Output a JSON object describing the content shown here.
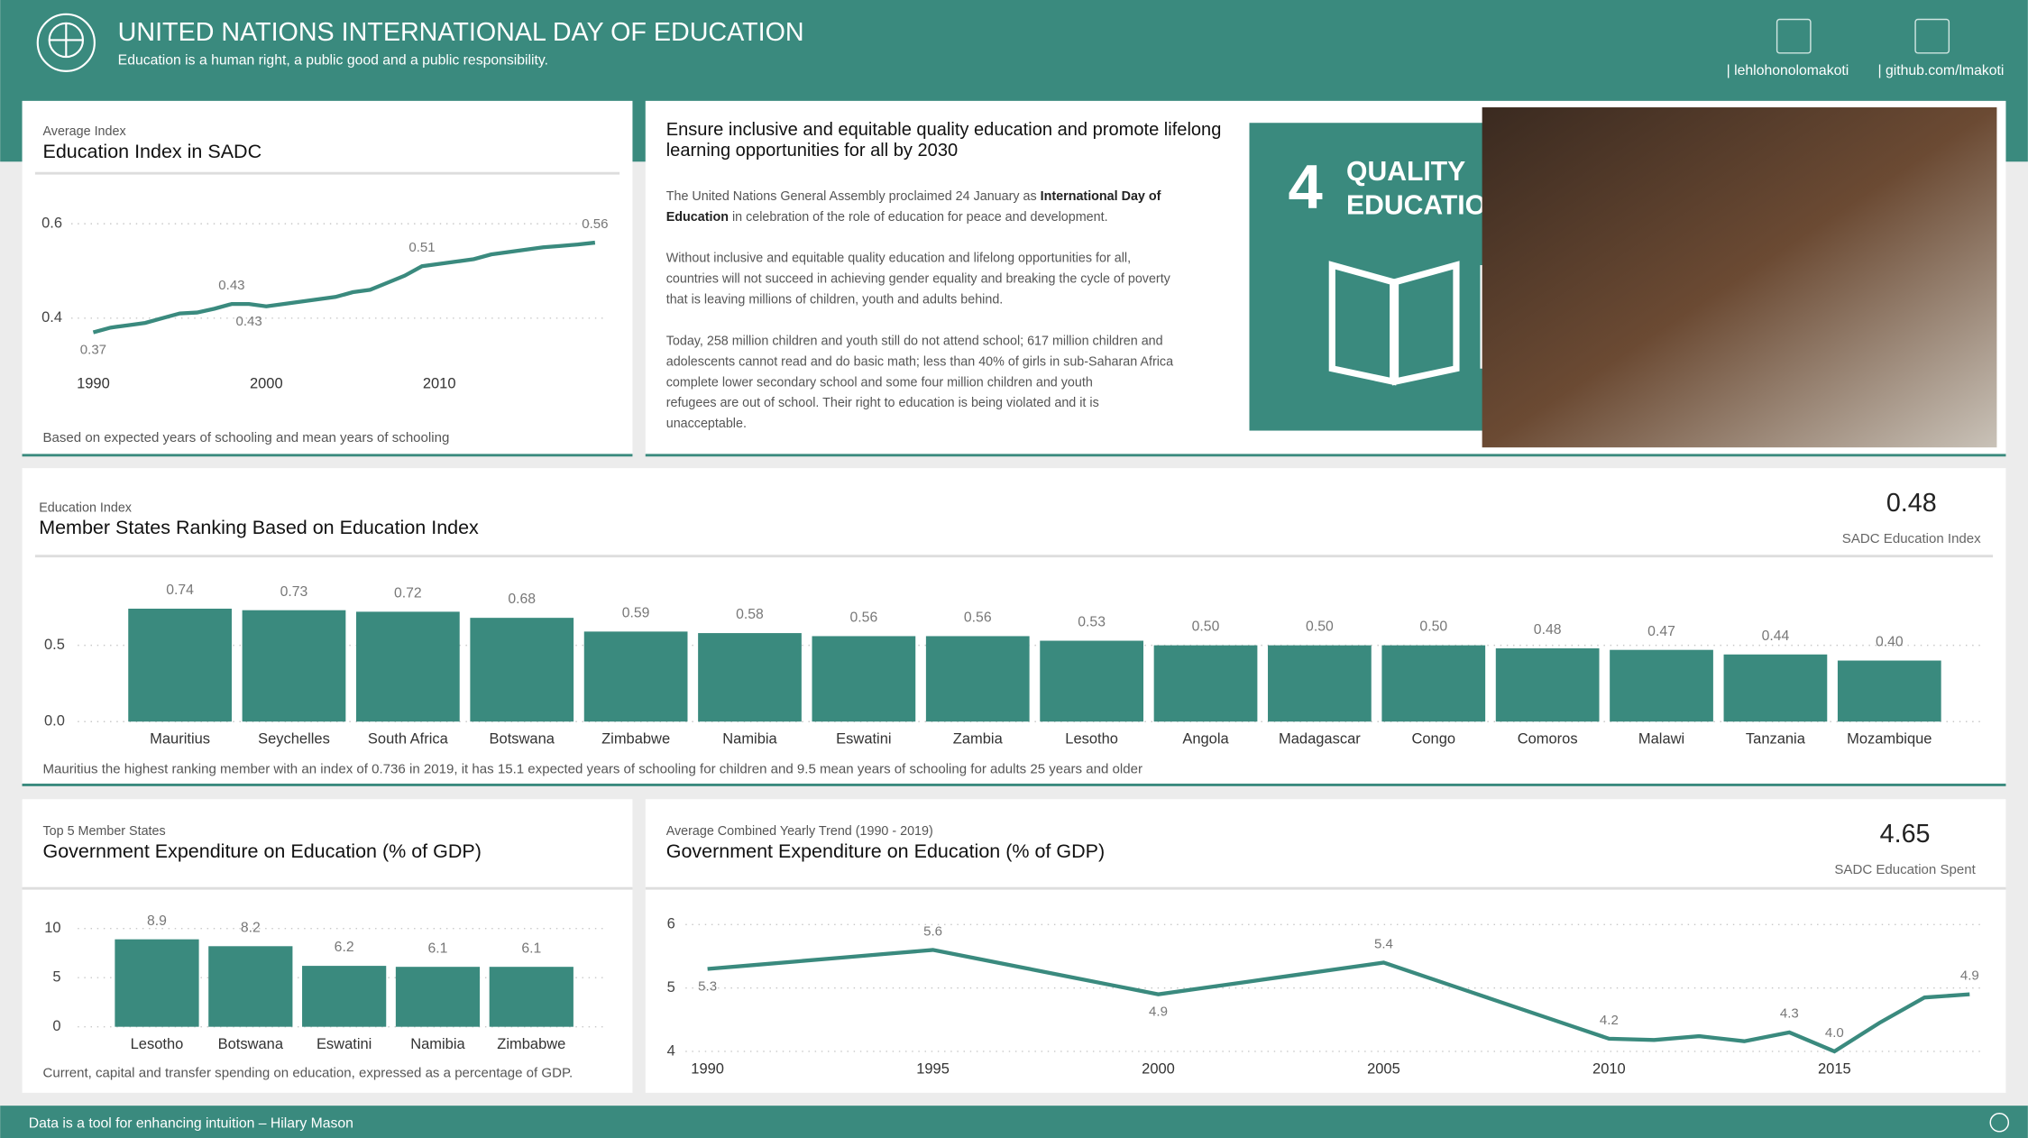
{
  "header": {
    "title": "UNITED NATIONS INTERNATIONAL DAY OF EDUCATION",
    "subtitle": "Education is a human right, a public good and a public responsibility.",
    "links": [
      "| lehlohonolomakoti",
      "| github.com/lmakoti"
    ]
  },
  "intro": {
    "heading": [
      "Ensure inclusive and equitable quality education and promote lifelong",
      "learning opportunities for all by 2030"
    ],
    "paragraph_1": [
      "The United Nations General Assembly proclaimed 24 January as ",
      "International Day of",
      "Education",
      " in celebration of the role of education for peace and development."
    ],
    "paragraph_2": [
      "Without inclusive and equitable quality education and lifelong opportunities for all,",
      "countries will not succeed in achieving gender equality and breaking the cycle of poverty",
      "that is leaving millions of children, youth and adults behind."
    ],
    "paragraph_3": [
      "Today, 258 million children and youth still do not attend school; 617 million children and",
      "adolescents cannot read and do basic math; less than 40% of girls in sub-Saharan Africa",
      "complete lower secondary school and some four million children and youth",
      " refugees are out of school. Their right to education is being violated and it is",
      "unacceptable."
    ]
  },
  "sdg_tile": {
    "number": "4",
    "lines": [
      "QUALITY",
      "EDUCATION"
    ]
  },
  "chart_data": [
    {
      "type": "line",
      "kicker": "Average Index",
      "title": "Education Index in SADC",
      "note": "Based on expected years of schooling and mean years of schooling",
      "x": [
        1990,
        1991,
        1992,
        1993,
        1994,
        1995,
        1996,
        1997,
        1998,
        1999,
        2000,
        2001,
        2002,
        2003,
        2004,
        2005,
        2006,
        2007,
        2008,
        2009,
        2010,
        2011,
        2012,
        2013,
        2014,
        2015,
        2016,
        2017,
        2018,
        2019
      ],
      "values": [
        0.37,
        0.38,
        0.385,
        0.39,
        0.4,
        0.41,
        0.412,
        0.42,
        0.43,
        0.43,
        0.425,
        0.43,
        0.435,
        0.44,
        0.445,
        0.455,
        0.46,
        0.475,
        0.49,
        0.51,
        0.515,
        0.52,
        0.525,
        0.535,
        0.54,
        0.545,
        0.55,
        0.553,
        0.556,
        0.56
      ],
      "value_labels": [
        "0.37",
        null,
        null,
        null,
        null,
        null,
        null,
        null,
        "0.43",
        "0.43",
        null,
        null,
        null,
        null,
        null,
        null,
        null,
        null,
        null,
        "0.51",
        null,
        null,
        null,
        null,
        null,
        null,
        null,
        null,
        null,
        "0.56"
      ],
      "color": "#3a8a7e",
      "xlim": [
        1990,
        2019
      ],
      "xticks": [
        1990,
        2000,
        2010
      ],
      "ylim": [
        0.35,
        0.62
      ],
      "yticks": [
        0.4,
        0.6
      ],
      "grid": true
    },
    {
      "type": "bar",
      "kicker": "Education Index",
      "title": "Member States Ranking Based on Education Index",
      "note": "Mauritius the highest ranking member with an index of 0.736 in 2019, it has 15.1 expected years of schooling for children and 9.5 mean years of schooling for adults 25 years and older",
      "kpi": {
        "value": 0.48,
        "label": "SADC Education Index"
      },
      "categories": [
        "Mauritius",
        "Seychelles",
        "South Africa",
        "Botswana",
        "Zimbabwe",
        "Namibia",
        "Eswatini",
        "Zambia",
        "Lesotho",
        "Angola",
        "Madagascar",
        "Congo",
        "Comoros",
        "Malawi",
        "Tanzania",
        "Mozambique"
      ],
      "values": [
        0.74,
        0.73,
        0.72,
        0.68,
        0.59,
        0.58,
        0.56,
        0.56,
        0.53,
        0.5,
        0.5,
        0.5,
        0.48,
        0.47,
        0.44,
        0.4
      ],
      "value_labels": [
        "0.74",
        "0.73",
        "0.72",
        "0.68",
        "0.59",
        "0.58",
        "0.56",
        "0.56",
        "0.53",
        "0.50",
        "0.50",
        "0.50",
        "0.48",
        "0.47",
        "0.44",
        "0.40"
      ],
      "color": "#3a8a7e",
      "ylim": [
        0,
        0.8
      ],
      "yticks": [
        {
          "value": 0,
          "label": "0.0"
        },
        0.5
      ],
      "grid": true
    },
    {
      "type": "bar",
      "kicker": "Top 5 Member States",
      "title": "Government Expenditure on Education (% of GDP)",
      "note": "Current, capital and transfer spending on education, expressed as a percentage of GDP.",
      "categories": [
        "Lesotho",
        "Botswana",
        "Eswatini",
        "Namibia",
        "Zimbabwe"
      ],
      "values": [
        8.9,
        8.2,
        6.2,
        6.1,
        6.1
      ],
      "color": "#3a8a7e",
      "ylim": [
        0,
        11
      ],
      "yticks": [
        0,
        5,
        10
      ],
      "grid": true
    },
    {
      "type": "line",
      "kicker": "Average Combined Yearly Trend (1990 - 2019)",
      "title": "Government Expenditure on Education (% of GDP)",
      "kpi": {
        "value": 4.65,
        "label": "SADC Education Spent"
      },
      "x": [
        1990,
        1991,
        1992,
        1993,
        1994,
        1995,
        1996,
        1997,
        1998,
        1999,
        2000,
        2001,
        2002,
        2003,
        2004,
        2005,
        2006,
        2007,
        2008,
        2009,
        2010,
        2011,
        2012,
        2013,
        2014,
        2015,
        2016,
        2017,
        2018
      ],
      "values": [
        5.3,
        5.36,
        5.42,
        5.48,
        5.54,
        5.6,
        5.46,
        5.32,
        5.18,
        5.04,
        4.9,
        5.0,
        5.1,
        5.2,
        5.3,
        5.4,
        5.16,
        4.92,
        4.68,
        4.44,
        4.2,
        4.18,
        4.24,
        4.16,
        4.3,
        4.0,
        4.45,
        4.85,
        4.9
      ],
      "value_labels": [
        "5.3",
        null,
        null,
        null,
        null,
        "5.6",
        null,
        null,
        null,
        null,
        "4.9",
        null,
        null,
        null,
        null,
        "5.4",
        null,
        null,
        null,
        null,
        "4.2",
        null,
        null,
        null,
        "4.3",
        "4.0",
        null,
        null,
        "4.9"
      ],
      "color": "#3a8a7e",
      "xlim": [
        1990,
        2018
      ],
      "xticks": [
        1990,
        1995,
        2000,
        2005,
        2010,
        2015
      ],
      "ylim": [
        3.98,
        6.05
      ],
      "yticks": [
        4,
        5,
        6
      ],
      "grid": true
    }
  ],
  "footer": "Data is a tool for enhancing intuition – Hilary Mason"
}
